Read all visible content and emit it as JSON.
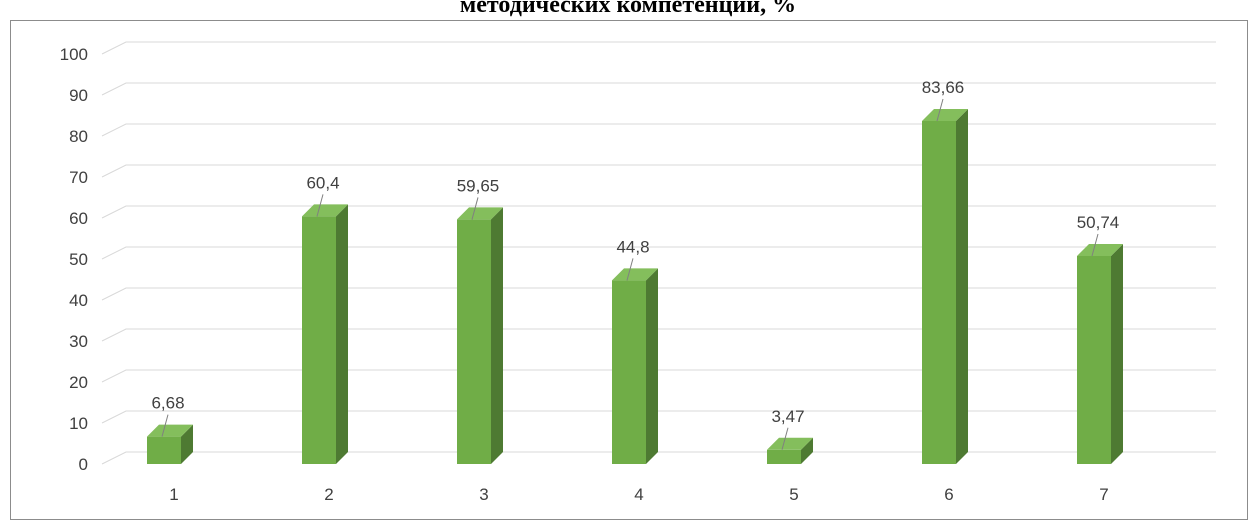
{
  "chart_data": {
    "type": "bar",
    "title": "методических компетенций, %",
    "categories": [
      "1",
      "2",
      "3",
      "4",
      "5",
      "6",
      "7"
    ],
    "values": [
      6.68,
      60.4,
      59.65,
      44.8,
      3.47,
      83.66,
      50.74
    ],
    "data_labels": [
      "6,68",
      "60,4",
      "59,65",
      "44,8",
      "3,47",
      "83,66",
      "50,74"
    ],
    "ylim": [
      0,
      100
    ],
    "yticks": [
      0,
      10,
      20,
      30,
      40,
      50,
      60,
      70,
      80,
      90,
      100
    ],
    "grid": true,
    "three_d": true,
    "xlabel": "",
    "ylabel": ""
  },
  "colors": {
    "bar_front": "#70ad47",
    "bar_side": "#4e7a32",
    "bar_top": "#84be5c",
    "grid": "#d9d9d9",
    "label_text": "#404040",
    "leader_line": "#808080"
  }
}
